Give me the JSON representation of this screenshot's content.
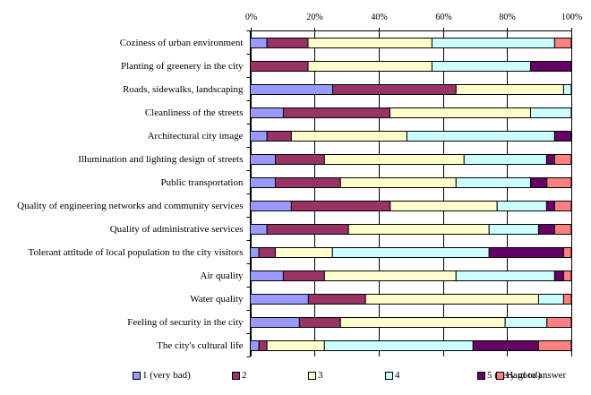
{
  "chart_data": {
    "type": "bar",
    "orientation": "horizontal",
    "stacked": "percent",
    "title": "",
    "xlabel": "",
    "ylabel": "",
    "xlim": [
      0,
      100
    ],
    "x_ticks": [
      "0%",
      "20%",
      "40%",
      "60%",
      "80%",
      "100%"
    ],
    "grid": true,
    "legend_position": "bottom",
    "categories": [
      "Coziness of urban environment",
      "Planting of greenery in the city",
      "Roads, sidewalks, landscaping",
      "Cleanliness of the streets",
      "Architectural city image",
      "Illumination and lighting design of streets",
      "Public transportation",
      "Quality of engineering networks and community services",
      "Quality of administrative services",
      "Tolerant attitude of local population to the city visitors",
      "Air quality",
      "Water quality",
      "Feeling of security in the city",
      "The city's cultural life"
    ],
    "series": [
      {
        "name": "1 (very bad)",
        "color": "#9999FF",
        "values": [
          5.2,
          0,
          25.7,
          10.3,
          5.2,
          7.8,
          7.8,
          12.8,
          5.2,
          2.7,
          10.3,
          18.1,
          15.3,
          2.7
        ]
      },
      {
        "name": "2",
        "color": "#993366",
        "values": [
          12.8,
          18.0,
          38.4,
          33.2,
          7.6,
          15.3,
          20.3,
          30.8,
          25.4,
          5.1,
          12.8,
          17.8,
          12.8,
          2.5
        ]
      },
      {
        "name": "3",
        "color": "#FFFFCC",
        "values": [
          38.6,
          38.6,
          33.5,
          43.8,
          36.0,
          43.5,
          36.0,
          33.3,
          43.8,
          17.8,
          41.0,
          53.9,
          51.3,
          17.9
        ]
      },
      {
        "name": "4",
        "color": "#CCFFFF",
        "values": [
          38.2,
          30.7,
          2.4,
          12.7,
          46.0,
          25.7,
          23.2,
          15.4,
          15.4,
          48.8,
          30.7,
          7.8,
          13.0,
          46.3
        ]
      },
      {
        "name": "5 (very good)",
        "color": "#660066",
        "values": [
          0,
          12.7,
          0,
          0,
          5.2,
          2.5,
          5.1,
          2.5,
          5.0,
          23.2,
          2.8,
          0,
          0,
          20.4
        ]
      },
      {
        "name": "Hard to answer",
        "color": "#FF8080",
        "values": [
          5.2,
          0,
          0,
          0,
          0,
          5.2,
          7.6,
          5.2,
          5.2,
          2.4,
          2.4,
          2.4,
          7.6,
          10.2
        ]
      }
    ]
  }
}
